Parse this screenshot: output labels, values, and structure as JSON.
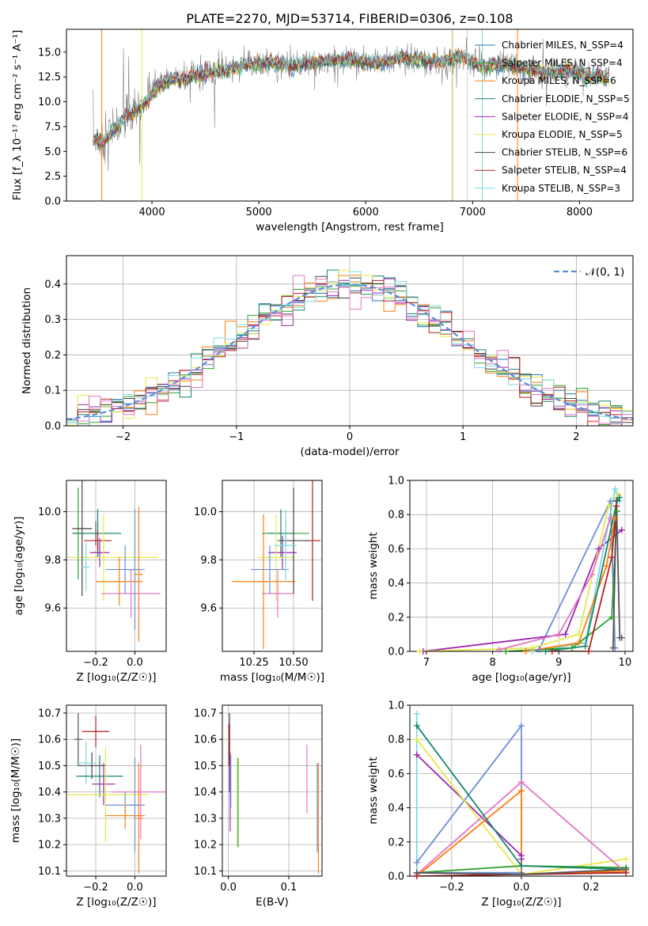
{
  "chart_data": [
    {
      "id": "spectrum",
      "type": "line",
      "title": "PLATE=2270, MJD=53714, FIBERID=0306, z=0.108",
      "xlabel": "wavelength [Angstrom, rest frame]",
      "ylabel": "Flux [f_λ 10⁻¹⁷ erg cm⁻² s⁻¹ A⁻¹]",
      "xlim": [
        3200,
        8500
      ],
      "ylim": [
        0,
        17.3
      ],
      "xticks": [
        "4000",
        "5000",
        "6000",
        "7000",
        "8000"
      ],
      "yticks": [
        "0.0",
        "2.5",
        "5.0",
        "7.5",
        "10.0",
        "12.5",
        "15.0"
      ],
      "legend_position": "top-right",
      "data_x_range": [
        3450,
        8280
      ],
      "spectrum_x": [
        3450,
        3550,
        3650,
        3750,
        3850,
        3950,
        4050,
        4150,
        4300,
        4500,
        4700,
        4900,
        5100,
        5300,
        5500,
        5700,
        5900,
        6100,
        6300,
        6500,
        6700,
        6900,
        7100,
        7300,
        7500,
        7700,
        7900,
        8100,
        8280
      ],
      "spectrum_y": [
        6.2,
        6.0,
        7.2,
        8.5,
        9.0,
        10.0,
        11.5,
        12.2,
        12.3,
        12.9,
        13.2,
        13.8,
        14.0,
        13.6,
        14.0,
        14.2,
        14.2,
        13.8,
        14.4,
        14.3,
        14.0,
        14.5,
        13.5,
        13.8,
        13.3,
        13.0,
        13.2,
        12.6,
        12.5
      ],
      "series": [
        {
          "name": "Chabrier MILES, N_SSP=4",
          "color": "#1f77b4"
        },
        {
          "name": "Salpeter MILES, N_SSP=4",
          "color": "#2ca02c"
        },
        {
          "name": "Kroupa MILES, N_SSP=6",
          "color": "#ff7f0e"
        },
        {
          "name": "Chabrier ELODIE, N_SSP=5",
          "color": "#17866b"
        },
        {
          "name": "Salpeter ELODIE, N_SSP=4",
          "color": "#9c27b0"
        },
        {
          "name": "Kroupa ELODIE, N_SSP=5",
          "color": "#e8e84a"
        },
        {
          "name": "Chabrier STELIB, N_SSP=6",
          "color": "#444444"
        },
        {
          "name": "Salpeter STELIB, N_SSP=4",
          "color": "#b22222"
        },
        {
          "name": "Kroupa STELIB, N_SSP=3",
          "color": "#7fd8e0"
        }
      ]
    },
    {
      "id": "residuals",
      "type": "line",
      "xlabel": "(data-model)/error",
      "ylabel": "Normed distribution",
      "xlim": [
        -2.5,
        2.5
      ],
      "ylim": [
        0,
        0.48
      ],
      "xticks": [
        "−2",
        "−1",
        "0",
        "1",
        "2"
      ],
      "yticks": [
        "0.0",
        "0.1",
        "0.2",
        "0.3",
        "0.4"
      ],
      "grid": true,
      "legend": {
        "label": "𝒩(0, 1)",
        "position": "top-right",
        "color": "#5b8fd8"
      },
      "bin_width": 0.1,
      "reference_mean": 0,
      "reference_sigma": 1,
      "histogram_colors": [
        "#1f77b4",
        "#2ca02c",
        "#ff7f0e",
        "#17866b",
        "#9c27b0",
        "#e8e84a",
        "#444444",
        "#b22222",
        "#7fd8e0",
        "#e377c2"
      ]
    },
    {
      "id": "age_vs_Z",
      "type": "errorbar",
      "xlabel": "Z [log₁₀(Z/Z☉)]",
      "ylabel": "age  [log₁₀(age/yr)]",
      "xlim": [
        -0.35,
        0.16
      ],
      "ylim": [
        9.42,
        10.13
      ],
      "xticks": [
        "−0.2",
        "0.0"
      ],
      "yticks": [
        "9.6",
        "9.8",
        "10.0"
      ],
      "grid": true,
      "points": [
        {
          "x": -0.2,
          "y": 9.91,
          "xerr": 0.12,
          "yerr": 0.05,
          "color": "#555555"
        },
        {
          "x": -0.29,
          "y": 9.91,
          "xerr": 0.02,
          "yerr": 0.19,
          "color": "#2ca02c"
        },
        {
          "x": -0.19,
          "y": 9.91,
          "xerr": 0.12,
          "yerr": 0.1,
          "color": "#17866b"
        },
        {
          "x": -0.19,
          "y": 9.88,
          "xerr": 0.07,
          "yerr": 0.04,
          "color": "#b22222"
        },
        {
          "x": -0.18,
          "y": 9.83,
          "xerr": 0.05,
          "yerr": 0.06,
          "color": "#9c27b0"
        },
        {
          "x": -0.16,
          "y": 9.81,
          "xerr": 0.28,
          "yerr": 0.18,
          "color": "#e8e84a"
        },
        {
          "x": -0.05,
          "y": 9.76,
          "xerr": 0.1,
          "yerr": 0.1,
          "color": "#6a8fd8"
        },
        {
          "x": -0.08,
          "y": 9.71,
          "xerr": 0.12,
          "yerr": 0.1,
          "color": "#ff7f0e"
        },
        {
          "x": -0.02,
          "y": 9.66,
          "xerr": 0.15,
          "yerr": 0.1,
          "color": "#e377c2"
        },
        {
          "x": -0.27,
          "y": 9.93,
          "xerr": 0.05,
          "yerr": 0.28,
          "color": "#444444"
        },
        {
          "x": 0.0,
          "y": 9.76,
          "xerr": 0.02,
          "yerr": 0.25,
          "color": "#6a8fd8"
        },
        {
          "x": 0.02,
          "y": 9.74,
          "xerr": 0.02,
          "yerr": 0.28,
          "color": "#ff7f0e"
        },
        {
          "x": -0.25,
          "y": 9.77,
          "xerr": 0.02,
          "yerr": 0.1,
          "color": "#7fd8e0"
        }
      ]
    },
    {
      "id": "age_vs_mass",
      "type": "errorbar",
      "xlabel": "mass [log₁₀(M/M☉)]",
      "ylabel": "",
      "xlim": [
        10.05,
        10.68
      ],
      "ylim": [
        9.42,
        10.13
      ],
      "xticks": [
        "10.25",
        "10.50"
      ],
      "yticks": [
        "9.6",
        "9.8",
        "10.0"
      ],
      "grid": true,
      "points": [
        {
          "x": 10.45,
          "y": 9.91,
          "xerr": 0.15,
          "yerr": 0.05,
          "color": "#2ca02c"
        },
        {
          "x": 10.42,
          "y": 9.91,
          "xerr": 0.08,
          "yerr": 0.1,
          "color": "#17866b"
        },
        {
          "x": 10.62,
          "y": 9.88,
          "xerr": 0.05,
          "yerr": 0.25,
          "color": "#b22222"
        },
        {
          "x": 10.43,
          "y": 9.83,
          "xerr": 0.09,
          "yerr": 0.07,
          "color": "#9c27b0"
        },
        {
          "x": 10.39,
          "y": 9.81,
          "xerr": 0.12,
          "yerr": 0.18,
          "color": "#e8e84a"
        },
        {
          "x": 10.35,
          "y": 9.76,
          "xerr": 0.12,
          "yerr": 0.1,
          "color": "#6a8fd8"
        },
        {
          "x": 10.31,
          "y": 9.71,
          "xerr": 0.2,
          "yerr": 0.28,
          "color": "#ff7f0e"
        },
        {
          "x": 10.4,
          "y": 9.66,
          "xerr": 0.1,
          "yerr": 0.1,
          "color": "#e377c2"
        },
        {
          "x": 10.5,
          "y": 9.88,
          "xerr": 0.1,
          "yerr": 0.22,
          "color": "#444444"
        },
        {
          "x": 10.45,
          "y": 9.86,
          "xerr": 0.07,
          "yerr": 0.15,
          "color": "#7fd8e0"
        }
      ]
    },
    {
      "id": "weights_vs_age",
      "type": "line",
      "xlabel": "age  [log₁₀(age/yr)]",
      "ylabel": "mass weight",
      "xlim": [
        6.75,
        10.12
      ],
      "ylim": [
        0,
        1.0
      ],
      "xticks": [
        "7",
        "8",
        "9",
        "10"
      ],
      "yticks": [
        "0.0",
        "0.2",
        "0.4",
        "0.6",
        "0.8",
        "1.0"
      ],
      "grid": true,
      "series": [
        {
          "color": "#6a8fd8",
          "x": [
            8.7,
            9.78,
            9.85
          ],
          "y": [
            0.01,
            0.88,
            0.02
          ]
        },
        {
          "color": "#9c27b0",
          "x": [
            6.95,
            9.1,
            9.6,
            9.95
          ],
          "y": [
            0.0,
            0.1,
            0.6,
            0.71
          ]
        },
        {
          "color": "#e8e84a",
          "x": [
            6.9,
            8.6,
            9.3,
            9.75,
            9.9
          ],
          "y": [
            0.0,
            0.02,
            0.1,
            0.85,
            0.92
          ]
        },
        {
          "color": "#7fd8e0",
          "x": [
            8.6,
            9.4,
            9.85,
            9.92
          ],
          "y": [
            0.0,
            0.05,
            0.95,
            0.88
          ]
        },
        {
          "color": "#2ca02c",
          "x": [
            8.2,
            9.2,
            9.8,
            9.88
          ],
          "y": [
            0.0,
            0.02,
            0.2,
            0.82
          ]
        },
        {
          "color": "#e377c2",
          "x": [
            8.1,
            9.0,
            9.5,
            9.78
          ],
          "y": [
            0.01,
            0.1,
            0.45,
            0.78
          ]
        },
        {
          "color": "#ff7f0e",
          "x": [
            8.5,
            9.3,
            9.72,
            9.85
          ],
          "y": [
            0.0,
            0.05,
            0.5,
            0.78
          ]
        },
        {
          "color": "#17866b",
          "x": [
            8.8,
            9.4,
            9.88,
            9.92
          ],
          "y": [
            0.0,
            0.03,
            0.88,
            0.9
          ]
        },
        {
          "color": "#b22222",
          "x": [
            8.9,
            9.45,
            9.8,
            9.87
          ],
          "y": [
            0.0,
            0.0,
            0.55,
            0.85
          ]
        },
        {
          "color": "#555555",
          "x": [
            9.82,
            9.87,
            9.92,
            9.95
          ],
          "y": [
            0.02,
            0.88,
            0.08,
            0.08
          ]
        }
      ]
    },
    {
      "id": "mass_vs_Z",
      "type": "errorbar",
      "xlabel": "Z [log₁₀(Z/Z☉)]",
      "ylabel": "mass [log₁₀(M/M☉)]",
      "xlim": [
        -0.35,
        0.16
      ],
      "ylim": [
        10.08,
        10.73
      ],
      "xticks": [
        "−0.2",
        "0.0"
      ],
      "yticks": [
        "10.1",
        "10.2",
        "10.3",
        "10.4",
        "10.5",
        "10.6",
        "10.7"
      ],
      "grid": true,
      "points": [
        {
          "x": -0.2,
          "y": 10.63,
          "xerr": 0.07,
          "yerr": 0.06,
          "color": "#b22222"
        },
        {
          "x": -0.29,
          "y": 10.6,
          "xerr": 0.02,
          "yerr": 0.1,
          "color": "#555555"
        },
        {
          "x": -0.22,
          "y": 10.5,
          "xerr": 0.07,
          "yerr": 0.05,
          "color": "#444444"
        },
        {
          "x": -0.25,
          "y": 10.51,
          "xerr": 0.05,
          "yerr": 0.08,
          "color": "#7fd8e0"
        },
        {
          "x": -0.18,
          "y": 10.46,
          "xerr": 0.12,
          "yerr": 0.08,
          "color": "#17866b"
        },
        {
          "x": -0.16,
          "y": 10.43,
          "xerr": 0.06,
          "yerr": 0.08,
          "color": "#9c27b0"
        },
        {
          "x": -0.15,
          "y": 10.39,
          "xerr": 0.22,
          "yerr": 0.18,
          "color": "#e8e84a"
        },
        {
          "x": -0.05,
          "y": 10.35,
          "xerr": 0.1,
          "yerr": 0.05,
          "color": "#6a8fd8"
        },
        {
          "x": -0.05,
          "y": 10.31,
          "xerr": 0.1,
          "yerr": 0.05,
          "color": "#ff7f0e"
        },
        {
          "x": 0.03,
          "y": 10.4,
          "xerr": 0.15,
          "yerr": 0.18,
          "color": "#e377c2"
        },
        {
          "x": 0.0,
          "y": 10.35,
          "xerr": 0.02,
          "yerr": 0.18,
          "color": "#6a8fd8"
        },
        {
          "x": 0.02,
          "y": 10.3,
          "xerr": 0.02,
          "yerr": 0.21,
          "color": "#ff7f0e"
        }
      ]
    },
    {
      "id": "mass_vs_ebv",
      "type": "errorbar",
      "xlabel": "E(B-V)",
      "ylabel": "",
      "xlim": [
        -0.01,
        0.155
      ],
      "ylim": [
        10.08,
        10.73
      ],
      "xticks": [
        "0.0",
        "0.1"
      ],
      "yticks": [
        "10.1",
        "10.2",
        "10.3",
        "10.4",
        "10.5",
        "10.6",
        "10.7"
      ],
      "grid": true,
      "points": [
        {
          "x": 0.002,
          "y": 10.55,
          "xerr": 0.0,
          "yerr": 0.15,
          "color": "#444444"
        },
        {
          "x": 0.001,
          "y": 10.58,
          "xerr": 0.0,
          "yerr": 0.08,
          "color": "#b22222"
        },
        {
          "x": 0.003,
          "y": 10.4,
          "xerr": 0.0,
          "yerr": 0.15,
          "color": "#9c27b0"
        },
        {
          "x": 0.004,
          "y": 10.44,
          "xerr": 0.0,
          "yerr": 0.1,
          "color": "#6a8fd8"
        },
        {
          "x": 0.015,
          "y": 10.36,
          "xerr": 0.0,
          "yerr": 0.17,
          "color": "#e8e84a"
        },
        {
          "x": 0.016,
          "y": 10.36,
          "xerr": 0.0,
          "yerr": 0.17,
          "color": "#2ca02c"
        },
        {
          "x": 0.13,
          "y": 10.45,
          "xerr": 0.0,
          "yerr": 0.13,
          "color": "#e377c2"
        },
        {
          "x": 0.147,
          "y": 10.34,
          "xerr": 0.0,
          "yerr": 0.17,
          "color": "#6a8fd8"
        },
        {
          "x": 0.149,
          "y": 10.3,
          "xerr": 0.0,
          "yerr": 0.21,
          "color": "#ff7f0e"
        }
      ]
    },
    {
      "id": "weights_vs_Z",
      "type": "line",
      "xlabel": "Z [log₁₀(Z/Z☉)]",
      "ylabel": "mass weight",
      "xlim": [
        -0.32,
        0.32
      ],
      "ylim": [
        0,
        1.0
      ],
      "xticks": [
        "−0.2",
        "0.0",
        "0.2"
      ],
      "yticks": [
        "0.0",
        "0.2",
        "0.4",
        "0.6",
        "0.8",
        "1.0"
      ],
      "grid": true,
      "series": [
        {
          "color": "#6a8fd8",
          "x": [
            -0.3,
            0.0,
            0.0,
            -0.3
          ],
          "y": [
            0.08,
            0.88,
            0.02,
            0.02
          ]
        },
        {
          "color": "#9c27b0",
          "x": [
            -0.3,
            0.0,
            0.0
          ],
          "y": [
            0.71,
            0.12,
            0.1
          ]
        },
        {
          "color": "#e8e84a",
          "x": [
            -0.3,
            0.0,
            0.3
          ],
          "y": [
            0.8,
            0.01,
            0.1
          ]
        },
        {
          "color": "#7fd8e0",
          "x": [
            -0.3,
            -0.3,
            0.0,
            0.3
          ],
          "y": [
            0.95,
            0.02,
            0.01,
            0.02
          ]
        },
        {
          "color": "#2ca02c",
          "x": [
            -0.3,
            0.0,
            0.3
          ],
          "y": [
            0.02,
            0.06,
            0.05
          ]
        },
        {
          "color": "#e377c2",
          "x": [
            -0.3,
            0.0,
            0.3
          ],
          "y": [
            0.01,
            0.55,
            0.02
          ]
        },
        {
          "color": "#ff7f0e",
          "x": [
            -0.3,
            0.0,
            0.0,
            0.3
          ],
          "y": [
            0.0,
            0.5,
            0.01,
            0.03
          ]
        },
        {
          "color": "#17866b",
          "x": [
            -0.3,
            0.0,
            0.3
          ],
          "y": [
            0.88,
            0.06,
            0.04
          ]
        },
        {
          "color": "#b22222",
          "x": [
            -0.3,
            0.0,
            0.3
          ],
          "y": [
            0.0,
            0.01,
            0.02
          ]
        },
        {
          "color": "#555555",
          "x": [
            -0.3,
            0.0,
            0.3
          ],
          "y": [
            0.02,
            0.01,
            0.04
          ]
        }
      ]
    }
  ]
}
